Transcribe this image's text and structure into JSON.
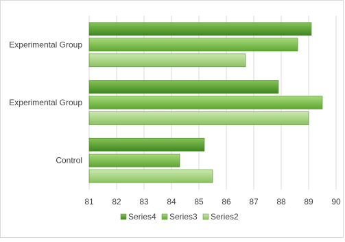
{
  "chart_data": {
    "type": "bar",
    "orientation": "horizontal",
    "categories": [
      "Control",
      "Experimental Group",
      "Experimental Group"
    ],
    "series": [
      {
        "name": "Series2",
        "values": [
          85.5,
          89.0,
          86.7
        ]
      },
      {
        "name": "Series3",
        "values": [
          84.3,
          89.5,
          88.6
        ]
      },
      {
        "name": "Series4",
        "values": [
          85.2,
          87.9,
          89.1
        ]
      }
    ],
    "xlim": [
      81,
      90
    ],
    "xticks": [
      "81",
      "82",
      "83",
      "84",
      "85",
      "86",
      "87",
      "88",
      "89",
      "90"
    ],
    "grid": "vertical",
    "legend_position": "bottom",
    "colors": {
      "Series2": "#a8d581",
      "Series3": "#7fbf4b",
      "Series4": "#5a9e2d"
    }
  },
  "legend": {
    "items": [
      {
        "label": "Series4",
        "color": "#5a9e2d"
      },
      {
        "label": "Series3",
        "color": "#7fbf4b"
      },
      {
        "label": "Series2",
        "color": "#a8d581"
      }
    ]
  }
}
